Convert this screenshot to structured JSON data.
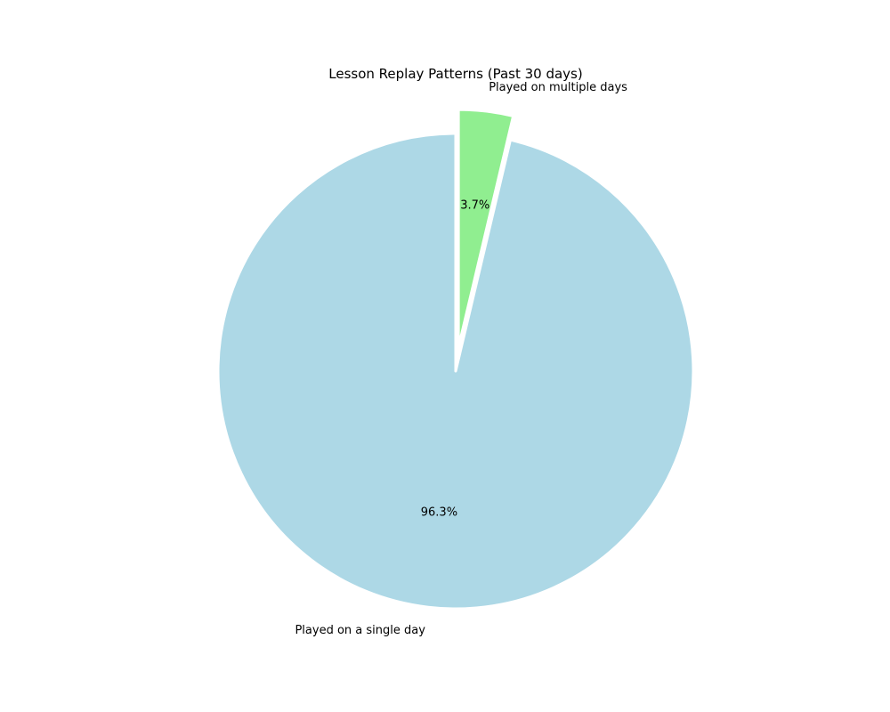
{
  "chart_data": {
    "type": "pie",
    "title": "Lesson Replay Patterns (Past 30 days)",
    "start_angle_deg": 90,
    "direction": "clockwise",
    "slices": [
      {
        "label": "Played on multiple days",
        "value": 3.7,
        "pct_text": "3.7%",
        "color": "#90ee90",
        "exploded": true
      },
      {
        "label": "Played on a single day",
        "value": 96.3,
        "pct_text": "96.3%",
        "color": "#add8e6",
        "exploded": false
      }
    ],
    "slice_edge_color": "#ffffff"
  }
}
